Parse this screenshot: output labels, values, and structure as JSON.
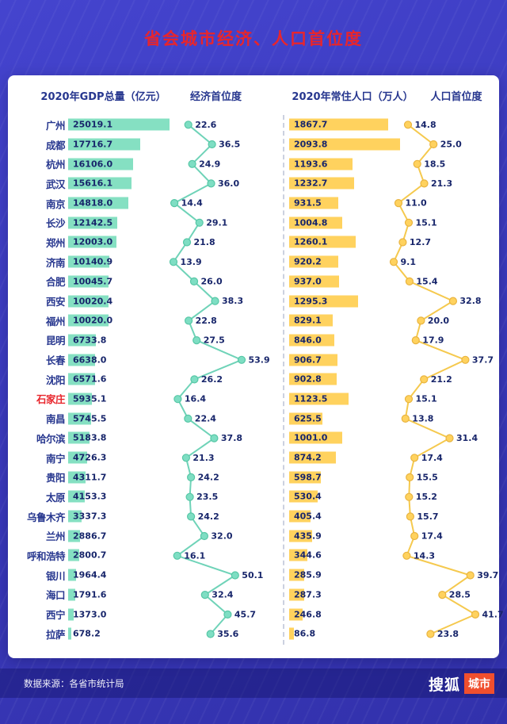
{
  "page_title": "省会城市经济、人口首位度",
  "panel": {
    "headers": {
      "gdp": "2020年GDP总量（亿元）",
      "econ_primacy": "经济首位度",
      "pop": "2020年常住人口（万人）",
      "pop_primacy": "人口首位度"
    }
  },
  "footer": {
    "source": "数据来源：各省市统计局",
    "logo_main": "搜狐",
    "logo_badge": "城市"
  },
  "colors": {
    "background": "#3a39bb",
    "card": "#ffffff",
    "title_red": "#e8252c",
    "navy_text": "#27378f",
    "value_text": "#18266b",
    "gdp_bar": "#85e0c2",
    "econ_line": "#6fd3b8",
    "econ_dot": "#7edec3",
    "econ_dot_stroke": "#57c7a6",
    "pop_bar": "#ffd25e",
    "pop_line": "#f5c94e",
    "pop_dot": "#ffd25e",
    "pop_dot_stroke": "#e9b440",
    "highlight_city": "#e8252c",
    "logo_badge_bg": "#f04f2e"
  },
  "chart_data": {
    "type": "bar",
    "title": "省会城市经济、人口首位度",
    "legend_position": "none",
    "grid": false,
    "highlighted_category": "石家庄",
    "categories": [
      "广州",
      "成都",
      "杭州",
      "武汉",
      "南京",
      "长沙",
      "郑州",
      "济南",
      "合肥",
      "西安",
      "福州",
      "昆明",
      "长春",
      "沈阳",
      "石家庄",
      "南昌",
      "哈尔滨",
      "南宁",
      "贵阳",
      "太原",
      "乌鲁木齐",
      "兰州",
      "呼和浩特",
      "银川",
      "海口",
      "西宁",
      "拉萨"
    ],
    "series": [
      {
        "name": "2020年GDP总量（亿元）",
        "type": "bar",
        "values": [
          25019.1,
          17716.7,
          16106.0,
          15616.1,
          14818.0,
          12142.5,
          12003.0,
          10140.9,
          10045.7,
          10020.4,
          10020.0,
          6733.8,
          6638.0,
          6571.6,
          5935.1,
          5745.5,
          5183.8,
          4726.3,
          4311.7,
          4153.3,
          3337.3,
          2886.7,
          2800.7,
          1964.4,
          1791.6,
          1373.0,
          678.2
        ]
      },
      {
        "name": "经济首位度",
        "type": "line",
        "values": [
          22.6,
          36.5,
          24.9,
          36.0,
          14.4,
          29.1,
          21.8,
          13.9,
          26.0,
          38.3,
          22.8,
          27.5,
          53.9,
          26.2,
          16.4,
          22.4,
          37.8,
          21.3,
          24.2,
          23.5,
          24.2,
          32.0,
          16.1,
          50.1,
          32.4,
          45.7,
          35.6
        ]
      },
      {
        "name": "2020年常住人口（万人）",
        "type": "bar",
        "values": [
          1867.7,
          2093.8,
          1193.6,
          1232.7,
          931.5,
          1004.8,
          1260.1,
          920.2,
          937.0,
          1295.3,
          829.1,
          846.0,
          906.7,
          902.8,
          1123.5,
          625.5,
          1001.0,
          874.2,
          598.7,
          530.4,
          405.4,
          435.9,
          344.6,
          285.9,
          287.3,
          246.8,
          86.8
        ]
      },
      {
        "name": "人口首位度",
        "type": "line",
        "values": [
          14.8,
          25.0,
          18.5,
          21.3,
          11.0,
          15.1,
          12.7,
          9.1,
          15.4,
          32.8,
          20.0,
          17.9,
          37.7,
          21.2,
          15.1,
          13.8,
          31.4,
          17.4,
          15.5,
          15.2,
          15.7,
          17.4,
          14.3,
          39.7,
          28.5,
          41.7,
          23.8
        ]
      }
    ]
  }
}
